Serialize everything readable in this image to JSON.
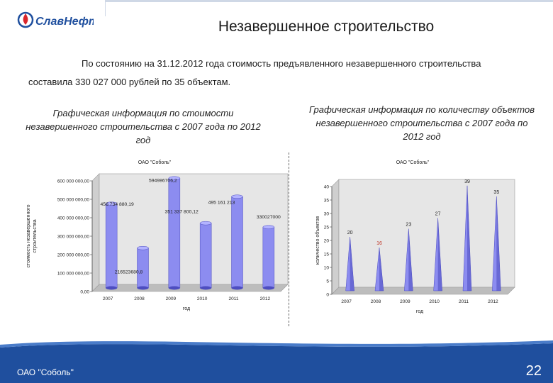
{
  "header": {
    "logo_text": "СлавНефть",
    "title": "Незавершенное строительство"
  },
  "intro": {
    "line1": "По состоянию на 31.12.2012 года стоимость предъявленного незавершенного строительства",
    "line2": "составила 330 027 000 рублей по 35 объектам."
  },
  "captions": {
    "left": "Графическая информация по стоимости незавершенного строительства с 2007 года по 2012 год",
    "right": "Графическая информация по количеству объектов незавершенного строительства с 2007 года по 2012 год"
  },
  "colors": {
    "bar_fill": "#8c8cf0",
    "bar_dark": "#4d4dc0",
    "plot_bg": "#e6e6e6",
    "footer": "#1f4f9e"
  },
  "chart_data": [
    {
      "type": "bar",
      "subtitle": "ОАО \"Соболь\"",
      "xlabel": "год",
      "ylabel": "стоимость незавершенного строительства",
      "categories": [
        "2007",
        "2008",
        "2009",
        "2010",
        "2011",
        "2012"
      ],
      "values": [
        456734880.19,
        216523680.8,
        594986706.2,
        351337800.12,
        495161213,
        330027000
      ],
      "data_labels": [
        "456 734 880,19",
        "216523680,8",
        "594986706,2",
        "351 337 800,12",
        "495 161 213",
        "330027000"
      ],
      "ylim": [
        0,
        600000000
      ],
      "yticks": [
        0,
        100000000,
        200000000,
        300000000,
        400000000,
        500000000,
        600000000
      ],
      "ytick_labels": [
        "0,00",
        "100 000 000,00",
        "200 000 000,00",
        "300 000 000,00",
        "400 000 000,00",
        "500 000 000,00",
        "600 000 000,00"
      ]
    },
    {
      "type": "bar",
      "subtitle": "ОАО \"Соболь\"",
      "xlabel": "год",
      "ylabel": "количество объектов",
      "categories": [
        "2007",
        "2008",
        "2009",
        "2010",
        "2011",
        "2012"
      ],
      "values": [
        20,
        16,
        23,
        27,
        39,
        35
      ],
      "data_labels": [
        "20",
        "16",
        "23",
        "27",
        "39",
        "35"
      ],
      "ylim": [
        0,
        40
      ],
      "yticks": [
        0,
        5,
        10,
        15,
        20,
        25,
        30,
        35,
        40
      ],
      "ytick_labels": [
        "0",
        "5",
        "10",
        "15",
        "20",
        "25",
        "30",
        "35",
        "40"
      ]
    }
  ],
  "footer": {
    "company": "ОАО \"Соболь\"",
    "page": "22"
  }
}
